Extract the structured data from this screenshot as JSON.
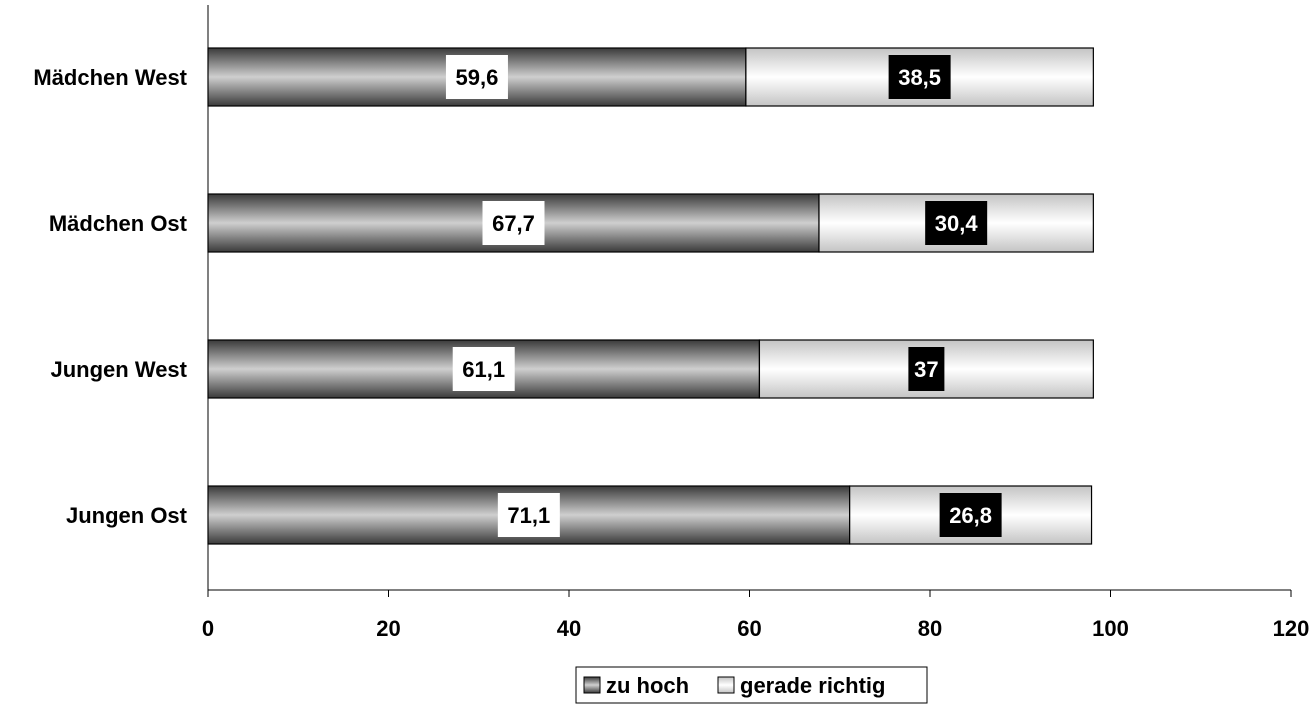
{
  "chart_data": {
    "type": "bar",
    "orientation": "horizontal",
    "stacked": true,
    "categories": [
      "Mädchen West",
      "Mädchen Ost",
      "Jungen West",
      "Jungen Ost"
    ],
    "series": [
      {
        "name": "zu hoch",
        "values": [
          59.6,
          67.7,
          61.1,
          71.1
        ],
        "labels": [
          "59,6",
          "67,7",
          "61,1",
          "71,1"
        ],
        "fill": "gradient-gray",
        "label_style": "white-box"
      },
      {
        "name": "gerade richtig",
        "values": [
          38.5,
          30.4,
          37,
          26.8
        ],
        "labels": [
          "38,5",
          "30,4",
          "37",
          "26,8"
        ],
        "fill": "gradient-light",
        "label_style": "black-box"
      }
    ],
    "xlim": [
      0,
      120
    ],
    "xticks": [
      0,
      20,
      40,
      60,
      80,
      100,
      120
    ],
    "xtick_labels": [
      "0",
      "20",
      "40",
      "60",
      "80",
      "100",
      "120"
    ],
    "title": "",
    "xlabel": "",
    "ylabel": "",
    "grid": false,
    "legend_position": "bottom-center",
    "colors": {
      "dark_bar_edge": "#4a4a4a",
      "dark_bar_mid": "#c8c8c8",
      "light_bar_edge": "#cfcfcf",
      "light_bar_mid": "#ffffff",
      "axis": "#000000",
      "text": "#000000"
    }
  }
}
